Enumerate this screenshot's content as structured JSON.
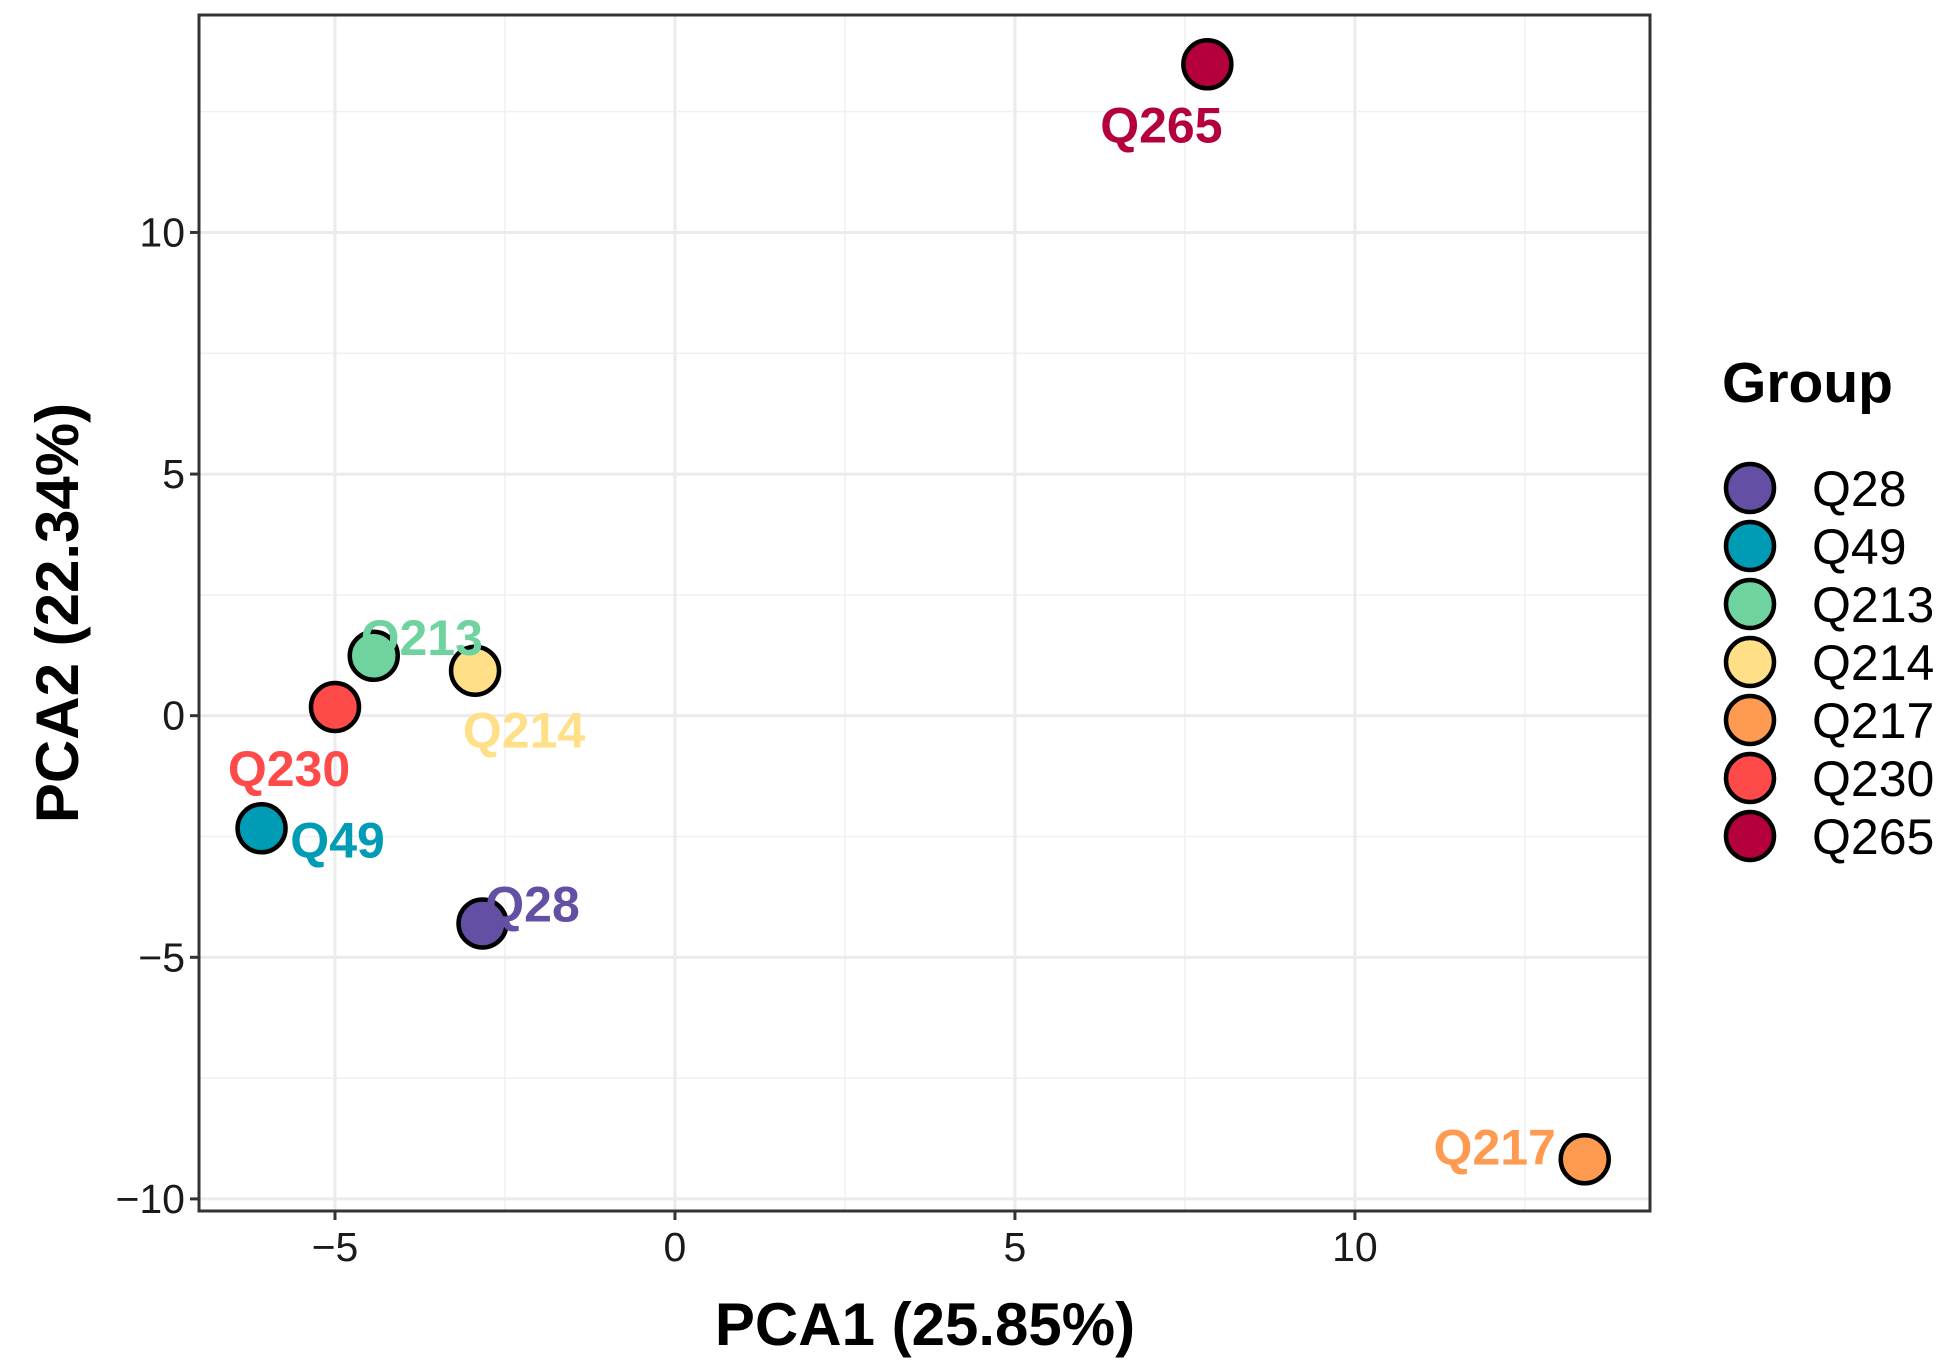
{
  "chart_data": {
    "type": "scatter",
    "title": "",
    "xlabel": "PCA1 (25.85%)",
    "ylabel": "PCA2 (22.34%)",
    "xlim": [
      -7.0,
      14.34
    ],
    "ylim": [
      -10.25,
      14.5
    ],
    "xticks": [
      -5,
      0,
      5,
      10
    ],
    "xtick_labels": [
      "−5",
      "0",
      "5",
      "10"
    ],
    "yticks": [
      -10,
      -5,
      0,
      5,
      10
    ],
    "ytick_labels": [
      "−10",
      "−5",
      "0",
      "5",
      "10"
    ],
    "grid": true,
    "legend": {
      "title": "Group",
      "placement": "right"
    },
    "points": [
      {
        "label": "Q28",
        "x": -2.83,
        "y": -4.3,
        "color": "#6350A5"
      },
      {
        "label": "Q49",
        "x": -6.08,
        "y": -2.33,
        "color": "#009BB4"
      },
      {
        "label": "Q213",
        "x": -4.43,
        "y": 1.24,
        "color": "#6FD3A0"
      },
      {
        "label": "Q214",
        "x": -2.94,
        "y": 0.93,
        "color": "#FFDF87"
      },
      {
        "label": "Q217",
        "x": 13.38,
        "y": -9.18,
        "color": "#FF9B50"
      },
      {
        "label": "Q230",
        "x": -5.0,
        "y": 0.18,
        "color": "#FF4A4A"
      },
      {
        "label": "Q265",
        "x": 7.83,
        "y": 13.48,
        "color": "#B5003E"
      }
    ]
  }
}
